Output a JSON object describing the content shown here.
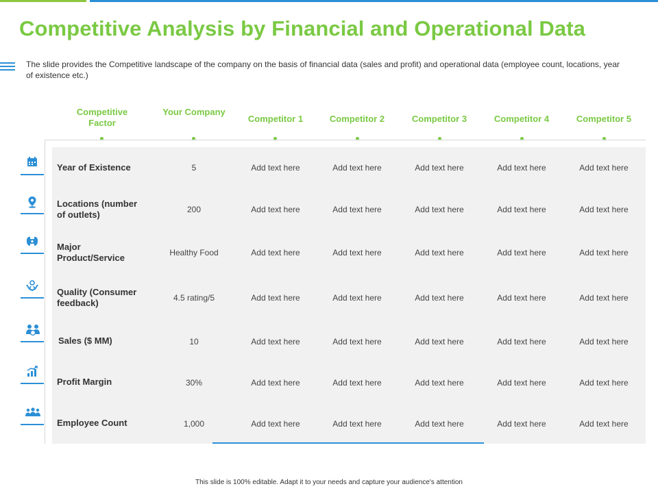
{
  "title": "Competitive Analysis by Financial and Operational Data",
  "description": "The slide provides the Competitive landscape of the company on the basis of financial data (sales and profit) and operational data (employee count, locations, year of existence etc.)",
  "table": {
    "headers": [
      "Competitive Factor",
      "Your Company",
      "Competitor 1",
      "Competitor 2",
      "Competitor 3",
      "Competitor 4",
      "Competitor 5"
    ],
    "rows": [
      {
        "icon": "calendar-icon",
        "label": "Year of Existence",
        "cells": [
          "5",
          "Add text here",
          "Add text here",
          "Add text here",
          "Add text here",
          "Add text here"
        ]
      },
      {
        "icon": "location-pin-icon",
        "label": "Locations (number of outlets)",
        "cells": [
          "200",
          "Add text here",
          "Add text here",
          "Add text here",
          "Add text here",
          "Add text here"
        ]
      },
      {
        "icon": "product-box-icon",
        "label": "Major Product/Service",
        "cells": [
          "Healthy Food",
          "Add text here",
          "Add text here",
          "Add text here",
          "Add text here",
          "Add text here"
        ]
      },
      {
        "icon": "hands-feedback-icon",
        "label": "Quality (Consumer feedback)",
        "cells": [
          "4.5 rating/5",
          "Add text here",
          "Add text here",
          "Add text here",
          "Add text here",
          "Add text here"
        ]
      },
      {
        "icon": "team-sales-icon",
        "label": "Sales ($ MM)",
        "cells": [
          "10",
          "Add text here",
          "Add text here",
          "Add text here",
          "Add text here",
          "Add text here"
        ]
      },
      {
        "icon": "growth-chart-icon",
        "label": "Profit Margin",
        "cells": [
          "30%",
          "Add text here",
          "Add text here",
          "Add text here",
          "Add text here",
          "Add text here"
        ]
      },
      {
        "icon": "employees-group-icon",
        "label": "Employee Count",
        "cells": [
          "1,000",
          "Add text here",
          "Add text here",
          "Add text here",
          "Add text here",
          "Add text here"
        ]
      }
    ]
  },
  "footer": "This slide is 100% editable. Adapt it to your needs and capture your audience's attention",
  "colors": {
    "accent_green": "#7ac943",
    "accent_blue": "#2b8fd6",
    "table_bg": "#f1f1f1"
  }
}
